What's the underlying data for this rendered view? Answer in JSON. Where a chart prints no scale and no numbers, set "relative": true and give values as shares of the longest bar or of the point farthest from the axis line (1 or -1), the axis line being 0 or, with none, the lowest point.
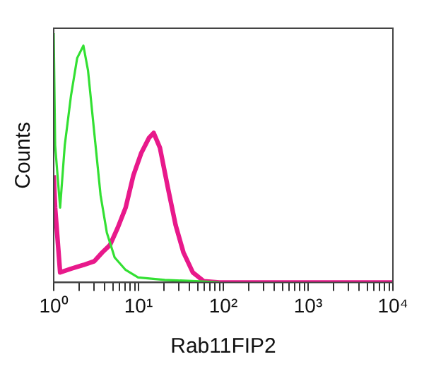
{
  "chart_data": {
    "type": "line",
    "xlabel": "Rab11FIP2",
    "ylabel": "Counts",
    "relative": true,
    "log": "x",
    "grid": false,
    "legend": false,
    "marker": "none",
    "line_style": "solid",
    "xlim": [
      1,
      10000
    ],
    "xticks": [
      {
        "value": 1,
        "label": "10⁰"
      },
      {
        "value": 2,
        "label": null
      },
      {
        "value": 3,
        "label": null
      },
      {
        "value": 4,
        "label": null
      },
      {
        "value": 5,
        "label": null
      },
      {
        "value": 6,
        "label": null
      },
      {
        "value": 7,
        "label": null
      },
      {
        "value": 8,
        "label": null
      },
      {
        "value": 9,
        "label": null
      },
      {
        "value": 10,
        "label": "10¹"
      },
      {
        "value": 20,
        "label": null
      },
      {
        "value": 30,
        "label": null
      },
      {
        "value": 40,
        "label": null
      },
      {
        "value": 50,
        "label": null
      },
      {
        "value": 60,
        "label": null
      },
      {
        "value": 70,
        "label": null
      },
      {
        "value": 80,
        "label": null
      },
      {
        "value": 90,
        "label": null
      },
      {
        "value": 100,
        "label": "10²"
      },
      {
        "value": 200,
        "label": null
      },
      {
        "value": 300,
        "label": null
      },
      {
        "value": 400,
        "label": null
      },
      {
        "value": 500,
        "label": null
      },
      {
        "value": 600,
        "label": null
      },
      {
        "value": 700,
        "label": null
      },
      {
        "value": 800,
        "label": null
      },
      {
        "value": 900,
        "label": null
      },
      {
        "value": 1000,
        "label": "10³"
      },
      {
        "value": 2000,
        "label": null
      },
      {
        "value": 3000,
        "label": null
      },
      {
        "value": 4000,
        "label": null
      },
      {
        "value": 5000,
        "label": null
      },
      {
        "value": 6000,
        "label": null
      },
      {
        "value": 7000,
        "label": null
      },
      {
        "value": 8000,
        "label": null
      },
      {
        "value": 9000,
        "label": null
      },
      {
        "value": 10000,
        "label": "10⁴"
      }
    ],
    "series": [
      {
        "color": "#33e033",
        "x": [
          1,
          1.04,
          1.19,
          1.35,
          1.6,
          1.89,
          2.24,
          2.54,
          3.01,
          3.57,
          4.23,
          5.23,
          7.05,
          9.9,
          20.4,
          47.6,
          90
        ],
        "values": [
          1,
          0.55,
          0.3,
          0.55,
          0.75,
          0.9,
          0.95,
          0.85,
          0.6,
          0.35,
          0.2,
          0.1,
          0.05,
          0.02,
          0.01,
          0.005,
          0
        ]
      },
      {
        "color": "#e8198b",
        "x": [
          1,
          1.04,
          1.19,
          1.6,
          2.24,
          3.01,
          3.73,
          4.61,
          5.7,
          7.05,
          8.71,
          10.8,
          13.3,
          15.1,
          17.9,
          22.2,
          27.4,
          33.9,
          43.7,
          58.9,
          90,
          10000
        ],
        "values": [
          0.43,
          0.3,
          0.04,
          0.055,
          0.07,
          0.085,
          0.12,
          0.15,
          0.22,
          0.3,
          0.43,
          0.52,
          0.58,
          0.6,
          0.54,
          0.38,
          0.23,
          0.12,
          0.04,
          0.005,
          0,
          0
        ]
      }
    ]
  }
}
